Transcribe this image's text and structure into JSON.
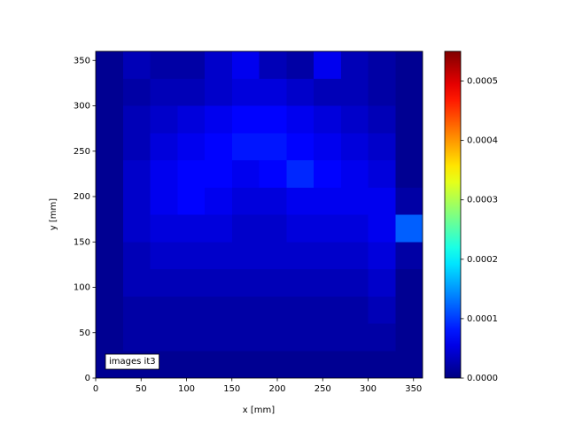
{
  "chart_data": {
    "type": "heatmap",
    "colormap": "jet",
    "xlabel": "x [mm]",
    "ylabel": "y [mm]",
    "annotation": "images it3",
    "xlim": [
      0,
      360
    ],
    "ylim": [
      0,
      360
    ],
    "xticks": [
      0,
      50,
      100,
      150,
      200,
      250,
      300,
      350
    ],
    "yticks": [
      0,
      50,
      100,
      150,
      200,
      250,
      300,
      350
    ],
    "xbins": [
      0,
      30,
      60,
      90,
      120,
      150,
      180,
      210,
      240,
      270,
      300,
      330,
      360
    ],
    "ybins": [
      0,
      30,
      60,
      90,
      120,
      150,
      180,
      210,
      240,
      270,
      300,
      330,
      360
    ],
    "z": [
      [
        1e-05,
        1e-05,
        1e-05,
        1e-05,
        1e-05,
        1e-05,
        1e-05,
        1e-05,
        1e-05,
        1e-05,
        1e-05,
        1e-05
      ],
      [
        1e-05,
        2e-05,
        2e-05,
        2e-05,
        2e-05,
        2e-05,
        2e-05,
        2e-05,
        2e-05,
        2e-05,
        2e-05,
        1e-05
      ],
      [
        1e-05,
        2e-05,
        2e-05,
        2e-05,
        2e-05,
        2e-05,
        2e-05,
        2e-05,
        2e-05,
        2e-05,
        3e-05,
        1e-05
      ],
      [
        1e-05,
        3e-05,
        3e-05,
        3e-05,
        3e-05,
        3e-05,
        3e-05,
        3e-05,
        3e-05,
        3e-05,
        4e-05,
        1e-05
      ],
      [
        1e-05,
        3e-05,
        4e-05,
        4e-05,
        4e-05,
        4e-05,
        4e-05,
        4e-05,
        4e-05,
        4e-05,
        5e-05,
        2e-05
      ],
      [
        1e-05,
        4e-05,
        5e-05,
        5e-05,
        5e-05,
        4e-05,
        4e-05,
        5e-05,
        5e-05,
        5e-05,
        6e-05,
        0.00012
      ],
      [
        1e-05,
        4e-05,
        6e-05,
        7e-05,
        6e-05,
        5e-05,
        5e-05,
        6e-05,
        6e-05,
        6e-05,
        6e-05,
        2e-05
      ],
      [
        1e-05,
        4e-05,
        6e-05,
        7e-05,
        7e-05,
        6e-05,
        7e-05,
        9e-05,
        7e-05,
        6e-05,
        5e-05,
        1e-05
      ],
      [
        1e-05,
        3e-05,
        5e-05,
        6e-05,
        7e-05,
        8e-05,
        8e-05,
        7e-05,
        6e-05,
        5e-05,
        4e-05,
        1e-05
      ],
      [
        1e-05,
        3e-05,
        4e-05,
        5e-05,
        6e-05,
        7e-05,
        7e-05,
        6e-05,
        5e-05,
        4e-05,
        3e-05,
        1e-05
      ],
      [
        1e-05,
        2e-05,
        3e-05,
        3e-05,
        4e-05,
        5e-05,
        5e-05,
        4e-05,
        3e-05,
        3e-05,
        2e-05,
        1e-05
      ],
      [
        1e-05,
        3e-05,
        2e-05,
        2e-05,
        4e-05,
        6e-05,
        3e-05,
        2e-05,
        6e-05,
        3e-05,
        2e-05,
        1e-05
      ]
    ],
    "clim": [
      0,
      0.00055
    ],
    "cticks": [
      {
        "value": 0,
        "label": "0.0000"
      },
      {
        "value": 0.0001,
        "label": "0.0001"
      },
      {
        "value": 0.0002,
        "label": "0.0002"
      },
      {
        "value": 0.0003,
        "label": "0.0003"
      },
      {
        "value": 0.0004,
        "label": "0.0004"
      },
      {
        "value": 0.0005,
        "label": "0.0005"
      }
    ]
  }
}
